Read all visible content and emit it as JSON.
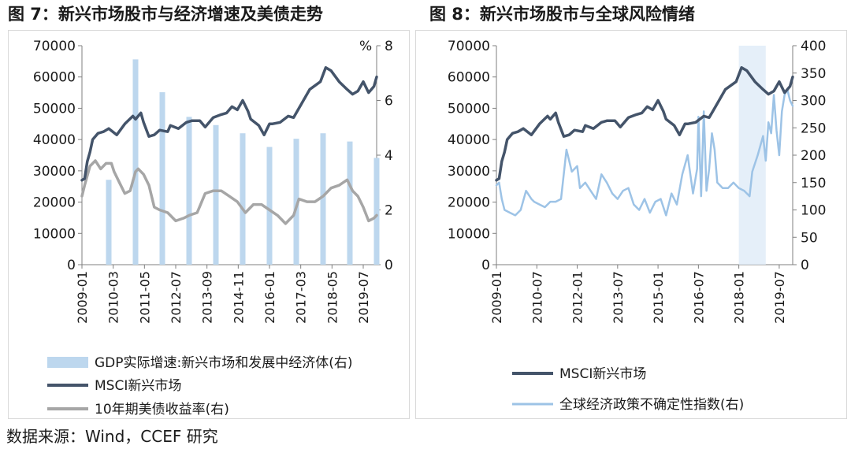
{
  "figure7": {
    "title": "图 7：新兴市场股市与经济增速及美债走势",
    "chart_data": {
      "type": "line",
      "left_axis": {
        "min": 0,
        "max": 70000,
        "ticks": [
          "0",
          "10000",
          "20000",
          "30000",
          "40000",
          "50000",
          "60000",
          "70000"
        ]
      },
      "right_axis": {
        "min": 0,
        "max": 8,
        "ticks": [
          "0",
          "2",
          "4",
          "6",
          "8"
        ],
        "unit": "%"
      },
      "x_tick_labels": [
        "2009-01",
        "2010-03",
        "2011-05",
        "2012-07",
        "2013-09",
        "2014-11",
        "2016-01",
        "2017-03",
        "2018-05",
        "2019-07"
      ],
      "legend": [
        "GDP实际增速:新兴市场和发展中经济体(右)",
        "MSCI新兴市场",
        "10年期美债收益率(右)"
      ],
      "gdp_bars": {
        "name": "GDP实际增速:新兴市场和发展中经济体(右)",
        "axis": "right",
        "color": "#bdd7ee",
        "x": [
          2010.0,
          2011.0,
          2012.0,
          2013.0,
          2014.0,
          2015.0,
          2016.0,
          2017.0,
          2018.0,
          2019.0,
          2020.0
        ],
        "values": [
          3.1,
          7.5,
          6.3,
          5.4,
          5.1,
          4.8,
          4.3,
          4.6,
          4.8,
          4.5,
          3.9
        ]
      },
      "msci": {
        "name": "MSCI新兴市场",
        "axis": "left",
        "color": "#44546a",
        "x": [
          2009.0,
          2009.1,
          2009.2,
          2009.3,
          2009.4,
          2009.6,
          2009.8,
          2010.0,
          2010.3,
          2010.6,
          2010.9,
          2011.0,
          2011.2,
          2011.3,
          2011.5,
          2011.7,
          2011.9,
          2012.2,
          2012.3,
          2012.6,
          2012.9,
          2013.1,
          2013.4,
          2013.6,
          2013.9,
          2014.2,
          2014.4,
          2014.6,
          2014.8,
          2015.0,
          2015.2,
          2015.3,
          2015.6,
          2015.8,
          2016.0,
          2016.1,
          2016.4,
          2016.7,
          2016.9,
          2017.1,
          2017.5,
          2017.9,
          2018.1,
          2018.3,
          2018.6,
          2018.9,
          2019.1,
          2019.3,
          2019.5,
          2019.7,
          2019.9,
          2020.0
        ],
        "values": [
          27000,
          27500,
          33000,
          36000,
          40000,
          42000,
          42500,
          43500,
          41500,
          45000,
          47500,
          46500,
          48500,
          45500,
          41000,
          41500,
          43000,
          42500,
          44500,
          43500,
          45500,
          46000,
          46000,
          44000,
          47000,
          48000,
          48500,
          50500,
          49500,
          52500,
          49000,
          46500,
          44500,
          41500,
          45000,
          45000,
          45500,
          47500,
          47000,
          50000,
          56000,
          58500,
          63000,
          62000,
          58500,
          56000,
          54500,
          55500,
          58500,
          55000,
          57000,
          60000
        ]
      },
      "ust10y": {
        "name": "10年期美债收益率(右)",
        "axis": "right",
        "color": "#a6a6a6",
        "x": [
          2009.0,
          2009.1,
          2009.3,
          2009.5,
          2009.7,
          2009.9,
          2010.1,
          2010.2,
          2010.4,
          2010.6,
          2010.8,
          2011.0,
          2011.1,
          2011.3,
          2011.5,
          2011.7,
          2011.9,
          2012.2,
          2012.5,
          2012.8,
          2013.0,
          2013.3,
          2013.6,
          2013.9,
          2014.2,
          2014.5,
          2014.8,
          2015.1,
          2015.4,
          2015.7,
          2016.0,
          2016.3,
          2016.6,
          2016.9,
          2017.1,
          2017.4,
          2017.7,
          2018.0,
          2018.3,
          2018.6,
          2018.9,
          2019.1,
          2019.3,
          2019.5,
          2019.7,
          2019.9,
          2020.0
        ],
        "values": [
          2.5,
          2.9,
          3.6,
          3.8,
          3.5,
          3.7,
          3.7,
          3.4,
          3.0,
          2.6,
          2.7,
          3.4,
          3.5,
          3.3,
          2.9,
          2.1,
          2.0,
          1.9,
          1.6,
          1.7,
          1.8,
          1.9,
          2.6,
          2.7,
          2.7,
          2.5,
          2.3,
          1.9,
          2.2,
          2.2,
          2.0,
          1.8,
          1.5,
          1.8,
          2.4,
          2.3,
          2.3,
          2.5,
          2.8,
          2.9,
          3.1,
          2.7,
          2.5,
          2.1,
          1.6,
          1.7,
          1.8
        ]
      }
    }
  },
  "figure8": {
    "title": "图 8：新兴市场股市与全球风险情绪",
    "chart_data": {
      "type": "line",
      "left_axis": {
        "min": 0,
        "max": 70000,
        "ticks": [
          "0",
          "10000",
          "20000",
          "30000",
          "40000",
          "50000",
          "60000",
          "70000"
        ]
      },
      "right_axis": {
        "min": 0,
        "max": 400,
        "ticks": [
          "0",
          "50",
          "100",
          "150",
          "200",
          "250",
          "300",
          "350",
          "400"
        ]
      },
      "x_tick_labels": [
        "2009-01",
        "2010-07",
        "2012-01",
        "2013-07",
        "2015-01",
        "2016-07",
        "2018-01",
        "2019-07"
      ],
      "shaded_period": {
        "from": 2018.0,
        "to": 2019.0,
        "color": "#deebf7"
      },
      "legend": [
        "MSCI新兴市场",
        "全球经济政策不确定性指数(右)"
      ],
      "msci": {
        "name": "MSCI新兴市场",
        "axis": "left",
        "color": "#44546a",
        "x": [
          2009.0,
          2009.1,
          2009.2,
          2009.3,
          2009.4,
          2009.6,
          2009.8,
          2010.0,
          2010.3,
          2010.6,
          2010.9,
          2011.0,
          2011.2,
          2011.3,
          2011.5,
          2011.7,
          2011.9,
          2012.2,
          2012.3,
          2012.6,
          2012.9,
          2013.1,
          2013.4,
          2013.6,
          2013.9,
          2014.2,
          2014.4,
          2014.6,
          2014.8,
          2015.0,
          2015.2,
          2015.3,
          2015.6,
          2015.8,
          2016.0,
          2016.1,
          2016.4,
          2016.7,
          2016.9,
          2017.1,
          2017.5,
          2017.9,
          2018.1,
          2018.3,
          2018.6,
          2018.9,
          2019.1,
          2019.3,
          2019.5,
          2019.7,
          2019.9,
          2020.0
        ],
        "values": [
          27000,
          27500,
          33000,
          36000,
          40000,
          42000,
          42500,
          43500,
          41500,
          45000,
          47500,
          46500,
          48500,
          45500,
          41000,
          41500,
          43000,
          42500,
          44500,
          43500,
          45500,
          46000,
          46000,
          44000,
          47000,
          48000,
          48500,
          50500,
          49500,
          52500,
          49000,
          46500,
          44500,
          41500,
          45000,
          45000,
          45500,
          47500,
          47000,
          50000,
          56000,
          58500,
          63000,
          62000,
          58500,
          56000,
          54500,
          55500,
          58500,
          55000,
          57000,
          60000
        ]
      },
      "epu": {
        "name": "全球经济政策不确定性指数(右)",
        "axis": "right",
        "color": "#9dc3e6",
        "x": [
          2009.0,
          2009.1,
          2009.2,
          2009.3,
          2009.5,
          2009.7,
          2009.9,
          2010.1,
          2010.3,
          2010.4,
          2010.6,
          2010.8,
          2011.0,
          2011.2,
          2011.4,
          2011.6,
          2011.8,
          2012.0,
          2012.1,
          2012.3,
          2012.5,
          2012.7,
          2012.9,
          2013.1,
          2013.3,
          2013.5,
          2013.7,
          2013.9,
          2014.1,
          2014.3,
          2014.5,
          2014.7,
          2014.9,
          2015.1,
          2015.3,
          2015.5,
          2015.7,
          2015.9,
          2016.1,
          2016.3,
          2016.45,
          2016.5,
          2016.6,
          2016.7,
          2016.8,
          2016.9,
          2017.0,
          2017.1,
          2017.2,
          2017.4,
          2017.6,
          2017.8,
          2018.0,
          2018.2,
          2018.4,
          2018.5,
          2018.7,
          2018.9,
          2019.0,
          2019.1,
          2019.2,
          2019.3,
          2019.4,
          2019.5,
          2019.6,
          2019.7,
          2019.8,
          2019.9,
          2020.0
        ],
        "values": [
          145,
          150,
          120,
          100,
          95,
          90,
          100,
          135,
          120,
          115,
          110,
          105,
          115,
          115,
          120,
          210,
          170,
          180,
          140,
          150,
          135,
          120,
          165,
          150,
          130,
          120,
          135,
          140,
          110,
          100,
          120,
          95,
          115,
          120,
          90,
          130,
          110,
          165,
          200,
          130,
          175,
          270,
          125,
          280,
          135,
          175,
          240,
          210,
          150,
          140,
          140,
          150,
          140,
          135,
          125,
          170,
          200,
          235,
          190,
          260,
          240,
          310,
          245,
          200,
          280,
          310,
          320,
          300,
          290
        ]
      }
    }
  },
  "source": "数据来源：Wind，CCEF 研究"
}
